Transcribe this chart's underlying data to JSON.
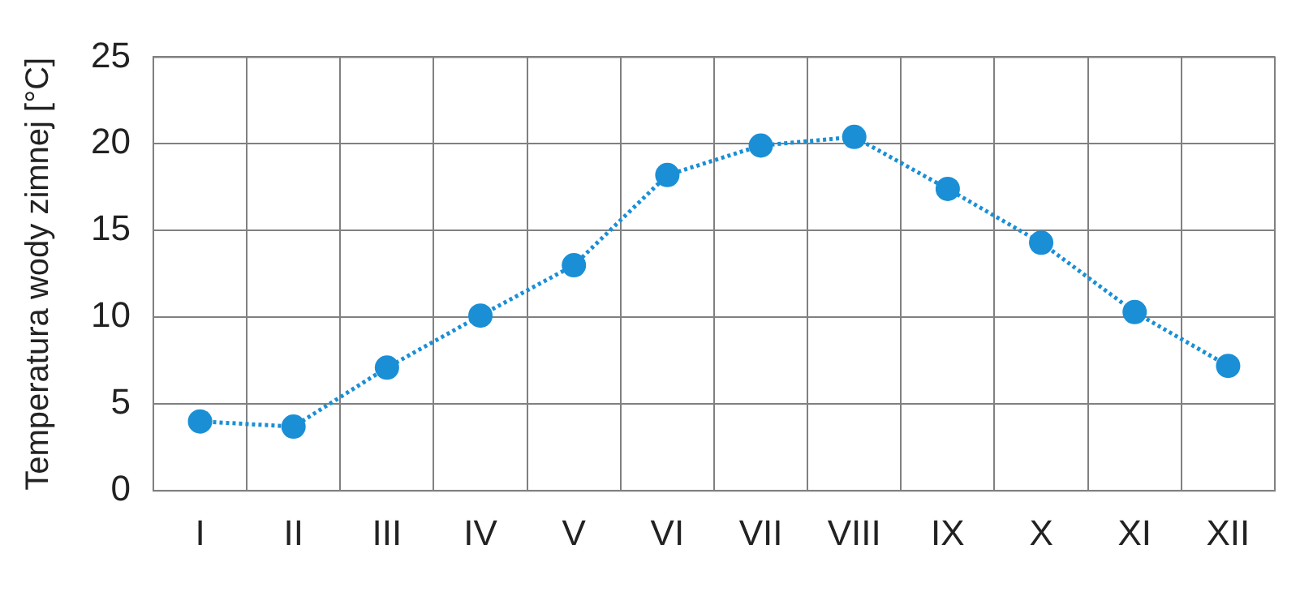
{
  "chart_data": {
    "type": "line",
    "ylabel": "Temperatura wody zimnej [°C]",
    "categories": [
      "I",
      "II",
      "III",
      "IV",
      "V",
      "VI",
      "VII",
      "VIII",
      "IX",
      "X",
      "XI",
      "XII"
    ],
    "series": [
      {
        "color": "#1a8fd6",
        "values": [
          4.0,
          3.7,
          7.1,
          10.1,
          13.0,
          18.2,
          19.9,
          20.4,
          17.4,
          14.3,
          10.3,
          7.2
        ]
      }
    ],
    "ylim": [
      0,
      25
    ],
    "yticks": [
      0,
      5,
      10,
      15,
      20,
      25
    ],
    "grid": true,
    "legend": false,
    "marker": "circle",
    "line_style": "dotted"
  }
}
